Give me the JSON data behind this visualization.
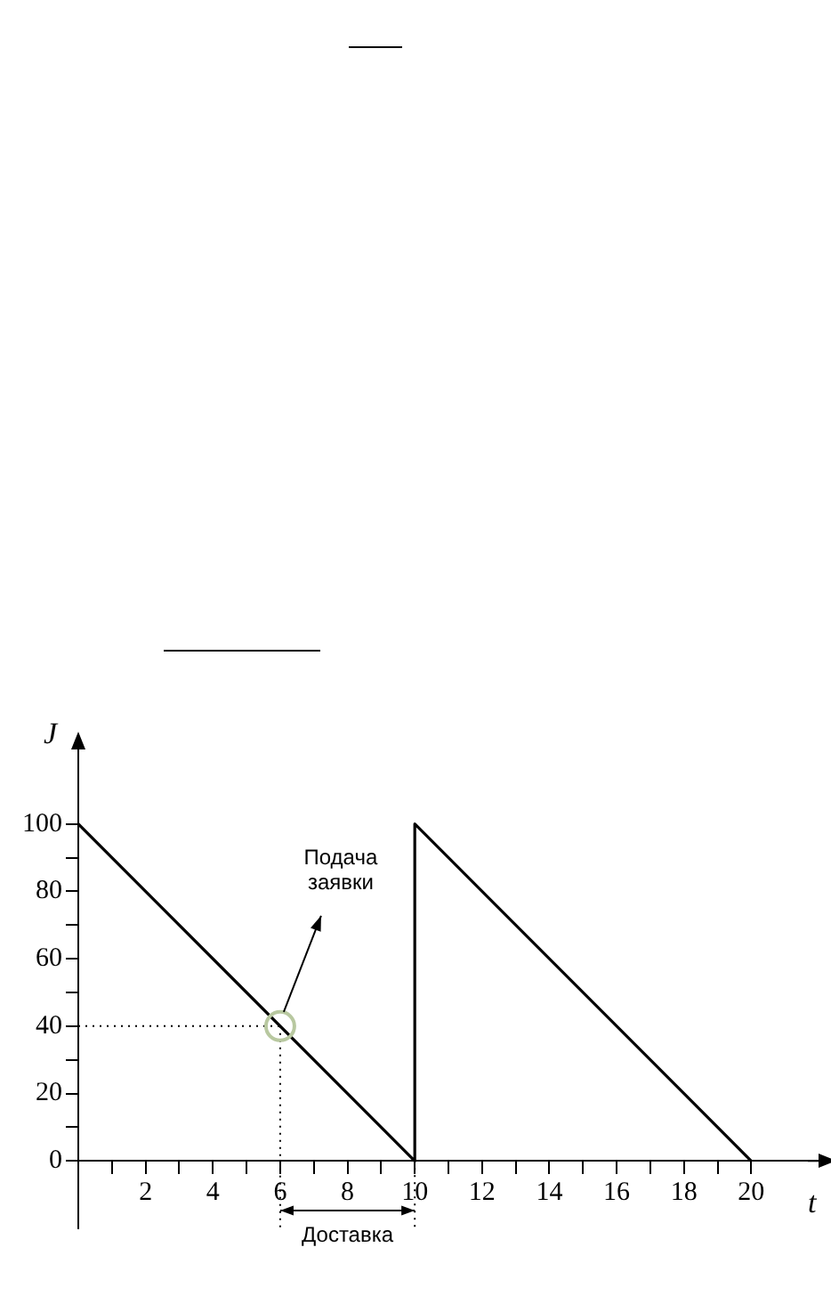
{
  "chart_data": {
    "type": "line",
    "xlabel": "t",
    "ylabel": "J",
    "series": [
      {
        "color": "#000000",
        "x": [
          0,
          10,
          10,
          20
        ],
        "values": [
          100,
          0,
          100,
          0
        ]
      }
    ],
    "xlim": [
      0,
      22
    ],
    "ylim": [
      -20,
      120
    ],
    "xticks": [
      {
        "value": 1,
        "label": null
      },
      2,
      {
        "value": 3,
        "label": null
      },
      4,
      {
        "value": 5,
        "label": null
      },
      6,
      {
        "value": 7,
        "label": null
      },
      8,
      {
        "value": 9,
        "label": null
      },
      10,
      {
        "value": 11,
        "label": null
      },
      12,
      {
        "value": 13,
        "label": null
      },
      14,
      {
        "value": 15,
        "label": null
      },
      16,
      {
        "value": 17,
        "label": null
      },
      18,
      {
        "value": 19,
        "label": null
      },
      20
    ],
    "yticks": [
      0,
      {
        "value": 10,
        "label": null
      },
      20,
      {
        "value": 30,
        "label": null
      },
      40,
      {
        "value": 50,
        "label": null
      },
      60,
      {
        "value": 70,
        "label": null
      },
      80,
      {
        "value": 90,
        "label": null
      },
      100
    ],
    "annotations": [
      {
        "text": "Подача заявки",
        "x": 6,
        "y": 40
      },
      "Доставка"
    ],
    "ref_lines": [
      {
        "axis": "y",
        "value": 40,
        "line_style": "dotted"
      },
      {
        "axis": "x",
        "value": 6,
        "line_style": "dotted"
      },
      {
        "axis": "x",
        "value": 10,
        "line_style": "dotted"
      }
    ],
    "grid": false,
    "legend": false,
    "marker": "none",
    "line_style": "solid"
  }
}
